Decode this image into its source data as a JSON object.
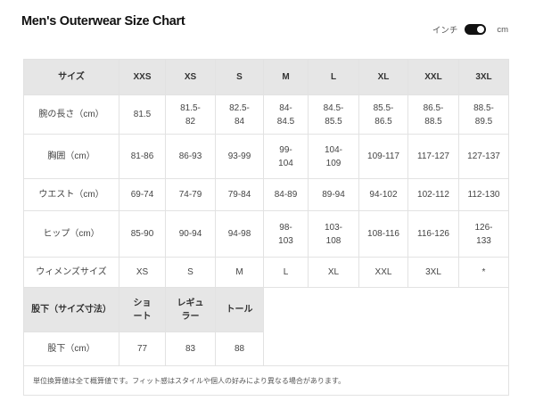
{
  "title": "Men's Outerwear Size Chart",
  "unit_toggle": {
    "left": "インチ",
    "right": "cm",
    "selected": "cm"
  },
  "table": {
    "header": [
      "サイズ",
      "XXS",
      "XS",
      "S",
      "M",
      "L",
      "XL",
      "XXL",
      "3XL"
    ],
    "rows": [
      [
        "腕の長さ（cm）",
        "81.5",
        "81.5-\n82",
        "82.5-\n84",
        "84-\n84.5",
        "84.5-\n85.5",
        "85.5-\n86.5",
        "86.5-\n88.5",
        "88.5-\n89.5"
      ],
      [
        "胸囲（cm）",
        "81-86",
        "86-93",
        "93-99",
        "99-\n104",
        "104-\n109",
        "109-117",
        "117-127",
        "127-137"
      ],
      [
        "ウエスト（cm）",
        "69-74",
        "74-79",
        "79-84",
        "84-89",
        "89-94",
        "94-102",
        "102-112",
        "112-130"
      ],
      [
        "ヒップ（cm）",
        "85-90",
        "90-94",
        "94-98",
        "98-\n103",
        "103-\n108",
        "108-116",
        "116-126",
        "126-\n133"
      ],
      [
        "ウィメンズサイズ",
        "XS",
        "S",
        "M",
        "L",
        "XL",
        "XXL",
        "3XL",
        "*"
      ]
    ]
  },
  "inseam": {
    "header": [
      "股下（サイズ寸法）",
      "ショ\nート",
      "レギュ\nラー",
      "トール"
    ],
    "row": [
      "股下（cm）",
      "77",
      "83",
      "88"
    ]
  },
  "note": "単位換算値は全て概算値です。フィット感はスタイルや個人の好みにより異なる場合があります。"
}
